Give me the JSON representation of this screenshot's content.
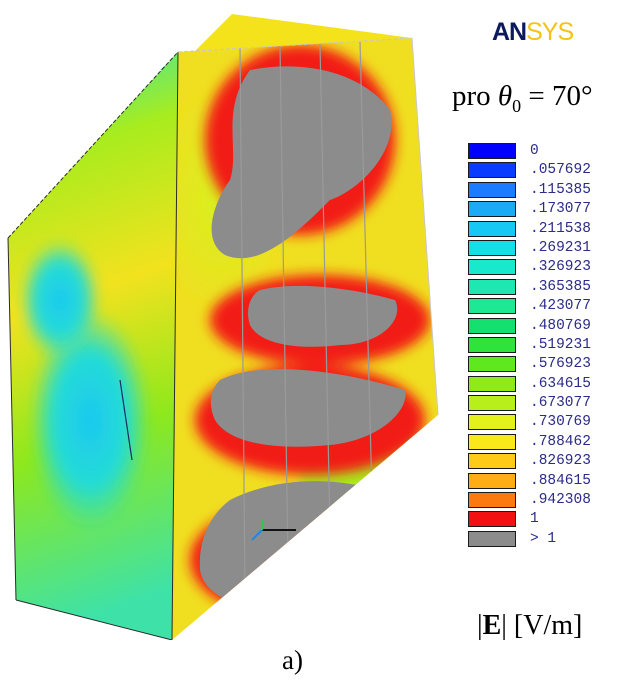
{
  "brand": {
    "part1": "AN",
    "part2": "SYS"
  },
  "title": {
    "prefix": "pro ",
    "symbol": "θ",
    "subscript": "0",
    "suffix": " = 70°"
  },
  "legend": {
    "entries": [
      {
        "label": "0",
        "color": "#0000ff"
      },
      {
        "label": ".057692",
        "color": "#0a3cff"
      },
      {
        "label": ".115385",
        "color": "#1c7cff"
      },
      {
        "label": ".173077",
        "color": "#1aaaf6"
      },
      {
        "label": ".211538",
        "color": "#16c8f4"
      },
      {
        "label": ".269231",
        "color": "#14dee6"
      },
      {
        "label": ".326923",
        "color": "#18e8cc"
      },
      {
        "label": ".365385",
        "color": "#1ee8b2"
      },
      {
        "label": ".423077",
        "color": "#1ee894"
      },
      {
        "label": ".480769",
        "color": "#14e070"
      },
      {
        "label": ".519231",
        "color": "#2ee43c"
      },
      {
        "label": ".576923",
        "color": "#60e81e"
      },
      {
        "label": ".634615",
        "color": "#90ea1a"
      },
      {
        "label": ".673077",
        "color": "#b8ee1a"
      },
      {
        "label": ".730769",
        "color": "#e2f21a"
      },
      {
        "label": ".788462",
        "color": "#fae81a"
      },
      {
        "label": ".826923",
        "color": "#fecc18"
      },
      {
        "label": ".884615",
        "color": "#fead14"
      },
      {
        "label": ".942308",
        "color": "#fa7a10"
      },
      {
        "label": "1",
        "color": "#f21010"
      },
      {
        "label": "> 1",
        "color": "#8c8c8c"
      }
    ]
  },
  "unit": {
    "open": "|",
    "symbol": "E",
    "close": "| [V/m]"
  },
  "panel_label": "a)"
}
